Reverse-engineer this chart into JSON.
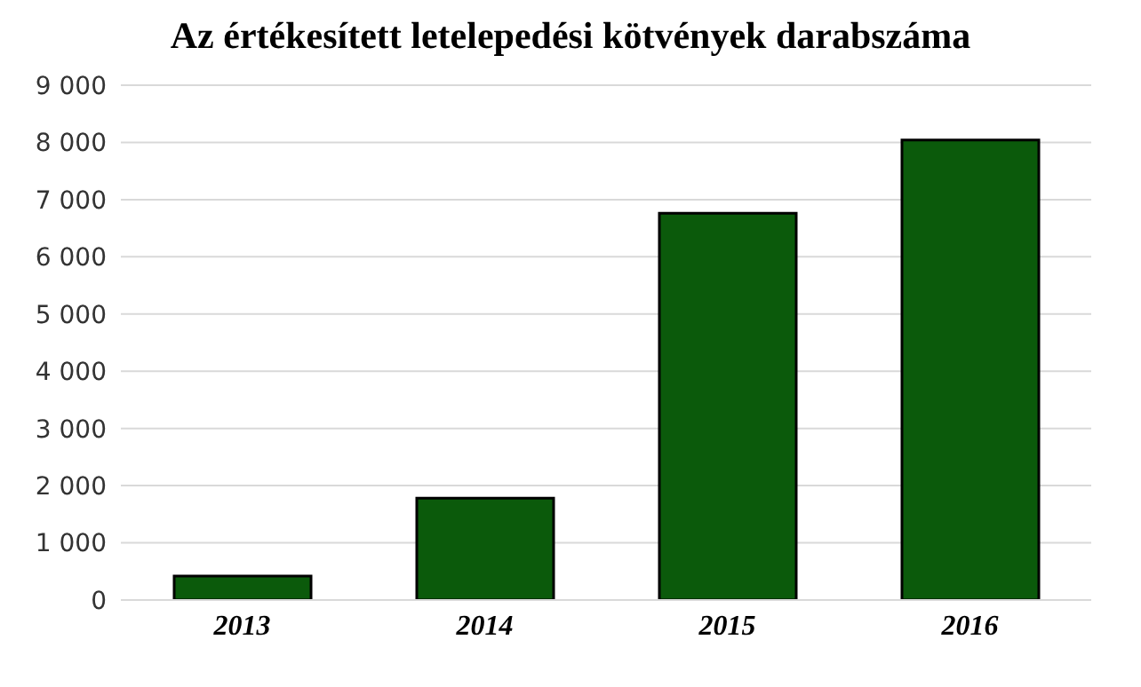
{
  "chart_data": {
    "type": "bar",
    "title": "Az értékesített letelepedési kötvények darabszáma",
    "categories": [
      "2013",
      "2014",
      "2015",
      "2016"
    ],
    "values": [
      420,
      1780,
      6760,
      8040
    ],
    "color": "#0b5a0b",
    "ylim": [
      0,
      9000
    ],
    "yticks": [
      0,
      {
        "value": 1000,
        "label": "1 000"
      },
      {
        "value": 2000,
        "label": "2 000"
      },
      {
        "value": 3000,
        "label": "3 000"
      },
      {
        "value": 4000,
        "label": "4 000"
      },
      {
        "value": 5000,
        "label": "5 000"
      },
      {
        "value": 6000,
        "label": "6 000"
      },
      {
        "value": 7000,
        "label": "7 000"
      },
      {
        "value": 8000,
        "label": "8 000"
      },
      {
        "value": 9000,
        "label": "9 000"
      }
    ],
    "grid": "y",
    "legend": false
  }
}
